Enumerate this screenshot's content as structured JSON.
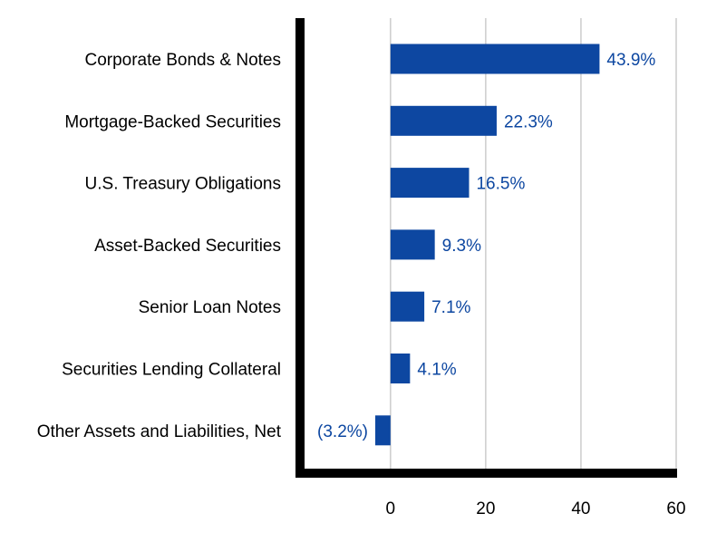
{
  "colors": {
    "bar": "#0D47A1",
    "data_label": "#0D47A1",
    "grid": "#CCCCCC",
    "axis": "#000000",
    "text": "#000000"
  },
  "chart_data": {
    "type": "bar",
    "orientation": "horizontal",
    "title": "",
    "xlabel": "",
    "ylabel": "",
    "xlim": [
      -19,
      60
    ],
    "x_ticks": [
      0,
      20,
      40,
      60
    ],
    "grid": true,
    "categories": [
      "Corporate Bonds & Notes",
      "Mortgage-Backed Securities",
      "U.S. Treasury Obligations",
      "Asset-Backed Securities",
      "Senior Loan Notes",
      "Securities Lending Collateral",
      "Other Assets and Liabilities, Net"
    ],
    "values": [
      43.9,
      22.3,
      16.5,
      9.3,
      7.1,
      4.1,
      -3.2
    ],
    "data_labels": [
      "43.9%",
      "22.3%",
      "16.5%",
      "9.3%",
      "7.1%",
      "4.1%",
      "(3.2%)"
    ]
  }
}
